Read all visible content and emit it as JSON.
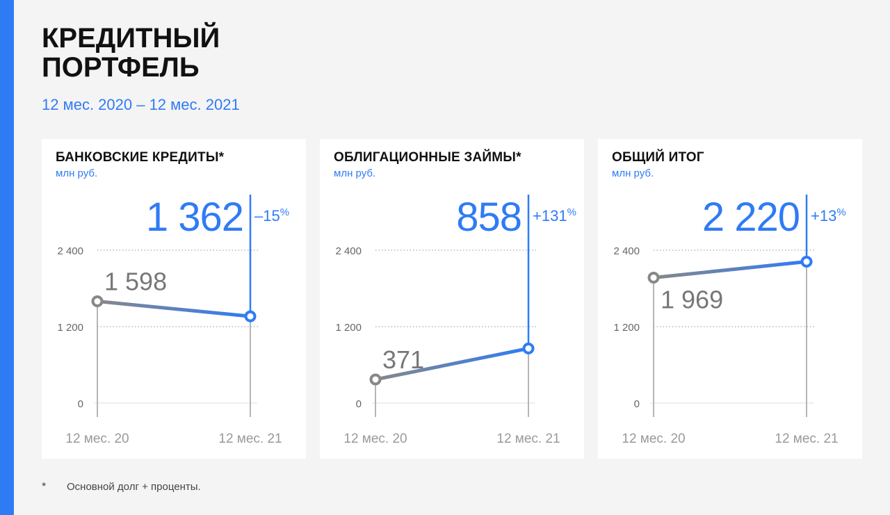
{
  "header": {
    "title_line1": "КРЕДИТНЫЙ",
    "title_line2": "ПОРТФЕЛЬ",
    "subtitle": "12 мес. 2020 – 12 мес. 2021"
  },
  "colors": {
    "accent": "#2f7bf5",
    "gray_line": "#888888",
    "start_label": "#777777",
    "axis": "#b5b5b5"
  },
  "chart_data": [
    {
      "type": "line",
      "title": "БАНКОВСКИЕ КРЕДИТЫ*",
      "unit": "млн руб.",
      "categories": [
        "12 мес. 20",
        "12 мес. 21"
      ],
      "values": [
        1598,
        1362
      ],
      "start_label": "1 598",
      "end_label": "1 362",
      "change_label": "–15",
      "change_unit": "%",
      "ylim": [
        0,
        2400
      ],
      "yticks": [
        0,
        1200,
        2400
      ],
      "ytick_labels": [
        "0",
        "1 200",
        "2 400"
      ],
      "grid": true
    },
    {
      "type": "line",
      "title": "ОБЛИГАЦИОННЫЕ ЗАЙМЫ*",
      "unit": "млн руб.",
      "categories": [
        "12 мес. 20",
        "12 мес. 21"
      ],
      "values": [
        371,
        858
      ],
      "start_label": "371",
      "end_label": "858",
      "change_label": "+131",
      "change_unit": "%",
      "ylim": [
        0,
        2400
      ],
      "yticks": [
        0,
        1200,
        2400
      ],
      "ytick_labels": [
        "0",
        "1 200",
        "2 400"
      ],
      "grid": true
    },
    {
      "type": "line",
      "title": "ОБЩИЙ ИТОГ",
      "unit": "млн руб.",
      "categories": [
        "12 мес. 20",
        "12 мес. 21"
      ],
      "values": [
        1969,
        2220
      ],
      "start_label": "1 969",
      "end_label": "2 220",
      "change_label": "+13",
      "change_unit": "%",
      "ylim": [
        0,
        2400
      ],
      "yticks": [
        0,
        1200,
        2400
      ],
      "ytick_labels": [
        "0",
        "1 200",
        "2 400"
      ],
      "grid": true
    }
  ],
  "footnote": {
    "mark": "*",
    "text": "Основной долг + проценты."
  }
}
